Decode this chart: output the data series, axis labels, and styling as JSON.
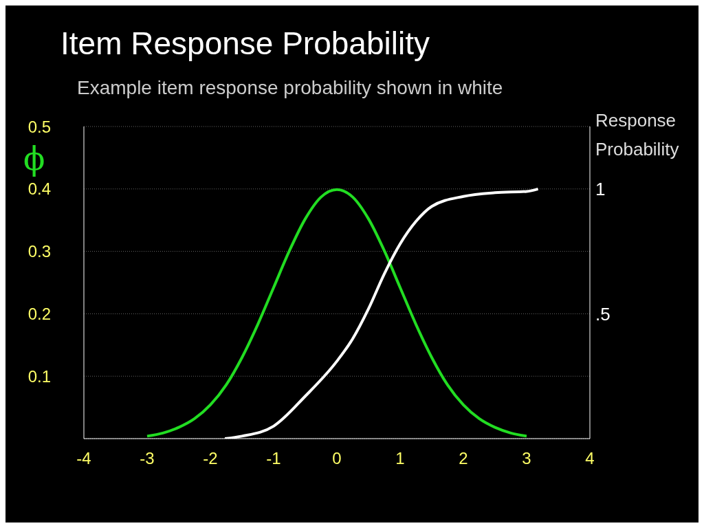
{
  "chart_data": {
    "type": "line",
    "title": "Item Response Probability",
    "subtitle": "Example item response probability shown in white",
    "ylabel": "ϕ",
    "y2label": "Response Probability",
    "xlim": [
      -4,
      4
    ],
    "xticks": [
      -4,
      -3,
      -2,
      -1,
      0,
      1,
      2,
      3,
      4
    ],
    "ylim": [
      0,
      0.5
    ],
    "yticks": [
      0.1,
      0.2,
      0.3,
      0.4,
      0.5
    ],
    "y2lim": [
      0,
      1.25
    ],
    "y2ticks": [
      {
        "value": 0.5,
        "label": ".5"
      },
      {
        "value": 1,
        "label": "1"
      }
    ],
    "grid": "y",
    "series": [
      {
        "color": "#22dd22",
        "x": [
          -3,
          -2.75,
          -2.5,
          -2.25,
          -2,
          -1.75,
          -1.5,
          -1.25,
          -1,
          -0.75,
          -0.5,
          -0.25,
          0,
          0.25,
          0.5,
          0.75,
          1,
          1.25,
          1.5,
          1.75,
          2,
          2.25,
          2.5,
          2.75,
          3
        ],
        "values": [
          0.004,
          0.009,
          0.018,
          0.032,
          0.054,
          0.086,
          0.13,
          0.183,
          0.242,
          0.301,
          0.352,
          0.387,
          0.399,
          0.387,
          0.352,
          0.301,
          0.242,
          0.183,
          0.13,
          0.086,
          0.054,
          0.032,
          0.018,
          0.009,
          0.004
        ]
      },
      {
        "color": "#ffffff",
        "axis": "y2",
        "x": [
          -1.77,
          -1.5,
          -1,
          -0.5,
          0,
          0.25,
          0.5,
          0.75,
          1,
          1.25,
          1.5,
          2,
          2.5,
          3,
          3.18
        ],
        "values": [
          0,
          0.01,
          0.05,
          0.17,
          0.31,
          0.4,
          0.52,
          0.66,
          0.78,
          0.87,
          0.93,
          0.97,
          0.985,
          0.99,
          1
        ]
      }
    ]
  }
}
